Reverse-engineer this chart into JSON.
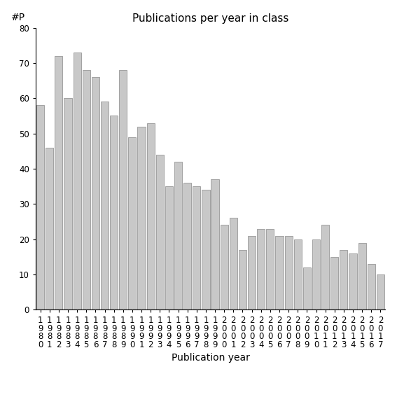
{
  "title": "Publications per year in class",
  "xlabel": "Publication year",
  "ylabel": "#P",
  "years": [
    "1980",
    "1981",
    "1982",
    "1983",
    "1984",
    "1985",
    "1986",
    "1987",
    "1988",
    "1989",
    "1990",
    "1991",
    "1992",
    "1993",
    "1994",
    "1995",
    "1996",
    "1997",
    "1998",
    "1999",
    "2000",
    "2001",
    "2002",
    "2003",
    "2004",
    "2005",
    "2006",
    "2007",
    "2008",
    "2009",
    "2010",
    "2011",
    "2012",
    "2013",
    "2014",
    "2015",
    "2016",
    "2017"
  ],
  "values": [
    58,
    46,
    72,
    60,
    73,
    68,
    66,
    59,
    55,
    68,
    49,
    52,
    53,
    44,
    35,
    42,
    36,
    35,
    34,
    37,
    24,
    26,
    17,
    21,
    23,
    23,
    21,
    21,
    20,
    12,
    20,
    24,
    15,
    17,
    16,
    19,
    13,
    10
  ],
  "bar_color": "#c8c8c8",
  "bar_edge_color": "#888888",
  "ylim": [
    0,
    80
  ],
  "yticks": [
    0,
    10,
    20,
    30,
    40,
    50,
    60,
    70,
    80
  ],
  "background_color": "#ffffff",
  "title_fontsize": 11,
  "axis_label_fontsize": 10,
  "tick_fontsize": 8.5
}
